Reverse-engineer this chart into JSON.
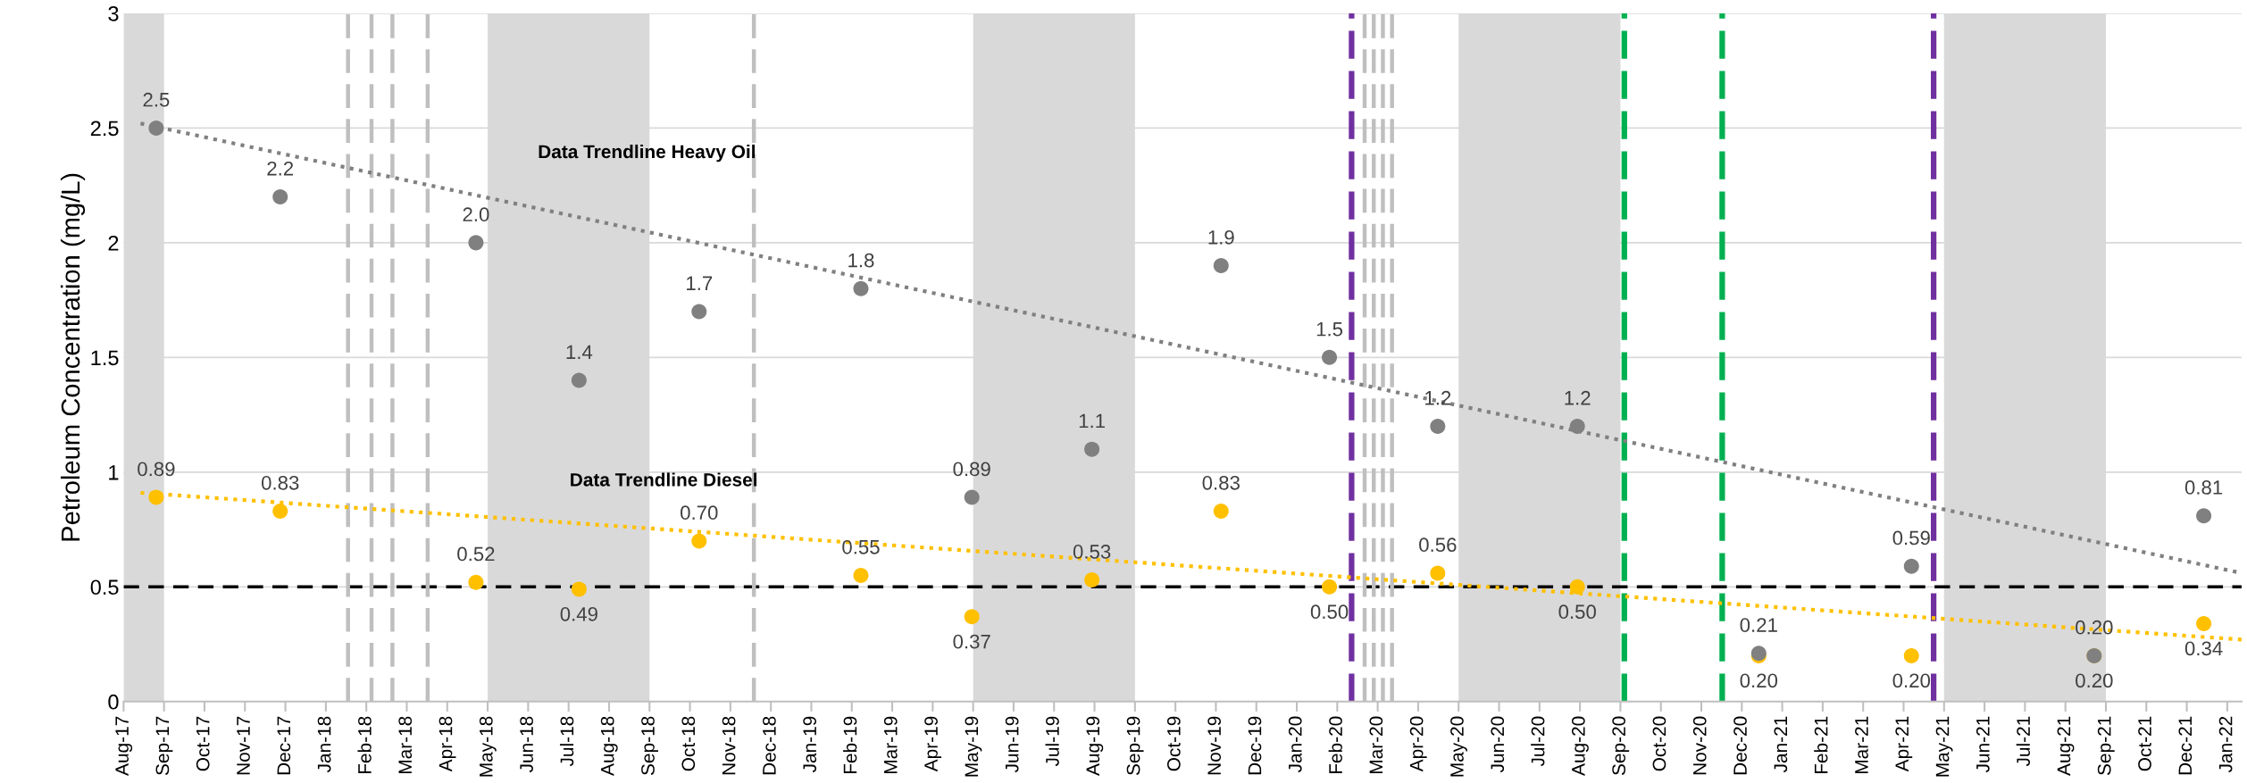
{
  "chart_data": {
    "type": "scatter",
    "ylabel": "Petroleum Concentration (mg/L)",
    "xlim": [
      "2017-08-03",
      "2022-01-12"
    ],
    "xticks": [
      {
        "value": "2017-08-03",
        "label": "Aug-17"
      },
      {
        "value": "2017-09-03",
        "label": "Sep-17"
      },
      {
        "value": "2017-10-04",
        "label": "Oct-17"
      },
      {
        "value": "2017-11-04",
        "label": "Nov-17"
      },
      {
        "value": "2017-12-05",
        "label": "Dec-17"
      },
      {
        "value": "2018-01-05",
        "label": "Jan-18"
      },
      {
        "value": "2018-02-05",
        "label": "Feb-18"
      },
      {
        "value": "2018-03-08",
        "label": "Mar-18"
      },
      {
        "value": "2018-04-08",
        "label": "Apr-18"
      },
      {
        "value": "2018-05-09",
        "label": "May-18"
      },
      {
        "value": "2018-06-09",
        "label": "Jun-18"
      },
      {
        "value": "2018-07-10",
        "label": "Jul-18"
      },
      {
        "value": "2018-08-10",
        "label": "Aug-18"
      },
      {
        "value": "2018-09-10",
        "label": "Sep-18"
      },
      {
        "value": "2018-10-11",
        "label": "Oct-18"
      },
      {
        "value": "2018-11-11",
        "label": "Nov-18"
      },
      {
        "value": "2018-12-12",
        "label": "Dec-18"
      },
      {
        "value": "2019-01-12",
        "label": "Jan-19"
      },
      {
        "value": "2019-02-12",
        "label": "Feb-19"
      },
      {
        "value": "2019-03-15",
        "label": "Mar-19"
      },
      {
        "value": "2019-04-15",
        "label": "Apr-19"
      },
      {
        "value": "2019-05-16",
        "label": "May-19"
      },
      {
        "value": "2019-06-16",
        "label": "Jun-19"
      },
      {
        "value": "2019-07-17",
        "label": "Jul-19"
      },
      {
        "value": "2019-08-17",
        "label": "Aug-19"
      },
      {
        "value": "2019-09-17",
        "label": "Sep-19"
      },
      {
        "value": "2019-10-18",
        "label": "Oct-19"
      },
      {
        "value": "2019-11-18",
        "label": "Nov-19"
      },
      {
        "value": "2019-12-19",
        "label": "Dec-19"
      },
      {
        "value": "2020-01-19",
        "label": "Jan-20"
      },
      {
        "value": "2020-02-19",
        "label": "Feb-20"
      },
      {
        "value": "2020-03-21",
        "label": "Mar-20"
      },
      {
        "value": "2020-04-21",
        "label": "Apr-20"
      },
      {
        "value": "2020-05-22",
        "label": "May-20"
      },
      {
        "value": "2020-06-22",
        "label": "Jun-20"
      },
      {
        "value": "2020-07-23",
        "label": "Jul-20"
      },
      {
        "value": "2020-08-23",
        "label": "Aug-20"
      },
      {
        "value": "2020-09-23",
        "label": "Sep-20"
      },
      {
        "value": "2020-10-24",
        "label": "Oct-20"
      },
      {
        "value": "2020-11-24",
        "label": "Nov-20"
      },
      {
        "value": "2020-12-25",
        "label": "Dec-20"
      },
      {
        "value": "2021-01-25",
        "label": "Jan-21"
      },
      {
        "value": "2021-02-25",
        "label": "Feb-21"
      },
      {
        "value": "2021-03-28",
        "label": "Mar-21"
      },
      {
        "value": "2021-04-28",
        "label": "Apr-21"
      },
      {
        "value": "2021-05-29",
        "label": "May-21"
      },
      {
        "value": "2021-06-29",
        "label": "Jun-21"
      },
      {
        "value": "2021-07-30",
        "label": "Jul-21"
      },
      {
        "value": "2021-08-30",
        "label": "Aug-21"
      },
      {
        "value": "2021-09-30",
        "label": "Sep-21"
      },
      {
        "value": "2021-10-31",
        "label": "Oct-21"
      },
      {
        "value": "2021-12-01",
        "label": "Dec-21"
      },
      {
        "value": "2022-01-01",
        "label": "Jan-22"
      }
    ],
    "ylim": [
      0,
      3
    ],
    "yticks": [
      0,
      0.5,
      1,
      1.5,
      2,
      2.5,
      3
    ],
    "grid": "y",
    "marker": "circle",
    "series": [
      {
        "color": "#808080",
        "x": [
          "2017-08-28",
          "2017-12-01",
          "2018-04-30",
          "2018-07-18",
          "2018-10-18",
          "2019-02-19",
          "2019-05-15",
          "2019-08-15",
          "2019-11-22",
          "2020-02-13",
          "2020-05-06",
          "2020-08-21",
          "2021-01-07",
          "2021-05-04",
          "2021-09-21",
          "2021-12-14"
        ],
        "values": [
          2.5,
          2.2,
          2.0,
          1.4,
          1.7,
          1.8,
          0.89,
          1.1,
          1.9,
          1.5,
          1.2,
          1.2,
          0.21,
          0.59,
          0.2,
          0.81
        ],
        "value_labels": [
          "2.5",
          "2.2",
          "2.0",
          "1.4",
          "1.7",
          "1.8",
          "0.89",
          "1.1",
          "1.9",
          "1.5",
          "1.2",
          "1.2",
          "0.21",
          "0.59",
          "0.20",
          "0.81"
        ]
      },
      {
        "color": "#ffc000",
        "x": [
          "2017-08-28",
          "2017-12-01",
          "2018-04-30",
          "2018-07-18",
          "2018-10-18",
          "2019-02-19",
          "2019-05-15",
          "2019-08-15",
          "2019-11-22",
          "2020-02-13",
          "2020-05-06",
          "2020-08-21",
          "2021-01-07",
          "2021-05-04",
          "2021-09-21",
          "2021-12-14"
        ],
        "values": [
          0.89,
          0.83,
          0.52,
          0.49,
          0.7,
          0.55,
          0.37,
          0.53,
          0.83,
          0.5,
          0.56,
          0.5,
          0.2,
          0.2,
          0.2,
          0.34
        ],
        "value_labels": [
          "0.89",
          "0.83",
          "0.52",
          "0.49",
          "0.70",
          "0.55",
          "0.37",
          "0.53",
          "0.83",
          "0.50",
          "0.56",
          "0.50",
          "0.20",
          "0.20",
          "0.20",
          "0.34"
        ]
      },
      {
        "type": "line",
        "color": "#808080",
        "line_style": "dotted",
        "marker": "none",
        "x": [
          "2017-08-16",
          "2022-01-12"
        ],
        "values": [
          2.52,
          0.56
        ]
      },
      {
        "type": "line",
        "color": "#ffc000",
        "line_style": "dotted",
        "marker": "none",
        "x": [
          "2017-08-16",
          "2022-01-12"
        ],
        "values": [
          0.91,
          0.27
        ]
      }
    ],
    "ref_lines": [
      {
        "axis": "y",
        "value": 0.5,
        "color": "#000000",
        "line_style": "dashed"
      },
      {
        "axis": "x",
        "value": "2018-01-22",
        "color": "#bfbfbf",
        "line_style": "dashed"
      },
      {
        "axis": "x",
        "value": "2018-02-09",
        "color": "#bfbfbf",
        "line_style": "dashed"
      },
      {
        "axis": "x",
        "value": "2018-02-25",
        "color": "#bfbfbf",
        "line_style": "dashed"
      },
      {
        "axis": "x",
        "value": "2018-03-24",
        "color": "#bfbfbf",
        "line_style": "dashed"
      },
      {
        "axis": "x",
        "value": "2018-11-29",
        "color": "#bfbfbf",
        "line_style": "dashed"
      },
      {
        "axis": "x",
        "value": "2020-03-01",
        "color": "#7030a0",
        "line_style": "dashed"
      },
      {
        "axis": "x",
        "value": "2020-03-11",
        "color": "#bfbfbf",
        "line_style": "dashed"
      },
      {
        "axis": "x",
        "value": "2020-03-18",
        "color": "#bfbfbf",
        "line_style": "dashed"
      },
      {
        "axis": "x",
        "value": "2020-03-25",
        "color": "#bfbfbf",
        "line_style": "dashed"
      },
      {
        "axis": "x",
        "value": "2020-04-01",
        "color": "#bfbfbf",
        "line_style": "dashed"
      },
      {
        "axis": "x",
        "value": "2020-09-26",
        "color": "#00b050",
        "line_style": "dashed"
      },
      {
        "axis": "x",
        "value": "2020-12-10",
        "color": "#00b050",
        "line_style": "dashed"
      },
      {
        "axis": "x",
        "value": "2021-05-21",
        "color": "#7030a0",
        "line_style": "dashed"
      }
    ],
    "bands": [
      {
        "axis": "x",
        "from": "2017-08-03",
        "to": "2017-09-03",
        "color": "#d9d9d9"
      },
      {
        "axis": "x",
        "from": "2018-05-09",
        "to": "2018-09-10",
        "color": "#d9d9d9"
      },
      {
        "axis": "x",
        "from": "2019-05-16",
        "to": "2019-09-17",
        "color": "#d9d9d9"
      },
      {
        "axis": "x",
        "from": "2020-05-22",
        "to": "2020-09-23",
        "color": "#d9d9d9"
      },
      {
        "axis": "x",
        "from": "2021-05-29",
        "to": "2021-09-30",
        "color": "#d9d9d9"
      }
    ],
    "annotations": [
      {
        "text": "Data Trendline Heavy Oil",
        "x": "2018-09-08",
        "y": 2.39
      },
      "Data Trendline Diesel"
    ]
  }
}
